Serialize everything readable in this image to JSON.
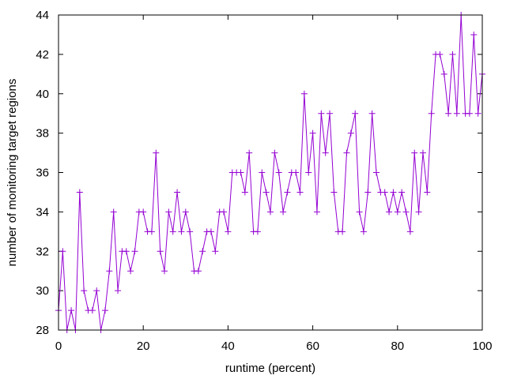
{
  "chart_data": {
    "type": "line",
    "title": "",
    "xlabel": "runtime (percent)",
    "ylabel": "number of monitoring target regions",
    "xlim": [
      0,
      100
    ],
    "ylim": [
      28,
      44
    ],
    "xticks": [
      0,
      20,
      40,
      60,
      80,
      100
    ],
    "yticks": [
      28,
      30,
      32,
      34,
      36,
      38,
      40,
      42,
      44
    ],
    "grid": false,
    "legend": "none",
    "series": [
      {
        "color": "#9400d3",
        "marker": "plus",
        "x": [
          0,
          1,
          2,
          3,
          4,
          5,
          6,
          7,
          8,
          9,
          10,
          11,
          12,
          13,
          14,
          15,
          16,
          17,
          18,
          19,
          20,
          21,
          22,
          23,
          24,
          25,
          26,
          27,
          28,
          29,
          30,
          31,
          32,
          33,
          34,
          35,
          36,
          37,
          38,
          39,
          40,
          41,
          42,
          43,
          44,
          45,
          46,
          47,
          48,
          49,
          50,
          51,
          52,
          53,
          54,
          55,
          56,
          57,
          58,
          59,
          60,
          61,
          62,
          63,
          64,
          65,
          66,
          67,
          68,
          69,
          70,
          71,
          72,
          73,
          74,
          75,
          76,
          77,
          78,
          79,
          80,
          81,
          82,
          83,
          84,
          85,
          86,
          87,
          88,
          89,
          90,
          91,
          92,
          93,
          94,
          95,
          96,
          97,
          98,
          99,
          100
        ],
        "y": [
          29,
          32,
          28,
          29,
          28,
          35,
          30,
          29,
          29,
          30,
          28,
          29,
          31,
          34,
          30,
          32,
          32,
          31,
          32,
          34,
          34,
          33,
          33,
          37,
          32,
          31,
          34,
          33,
          35,
          33,
          34,
          33,
          31,
          31,
          32,
          33,
          33,
          32,
          34,
          34,
          33,
          36,
          36,
          36,
          35,
          37,
          33,
          33,
          36,
          35,
          34,
          37,
          36,
          34,
          35,
          36,
          36,
          35,
          40,
          36,
          38,
          34,
          39,
          37,
          39,
          35,
          33,
          33,
          37,
          38,
          39,
          34,
          33,
          35,
          39,
          36,
          35,
          35,
          34,
          35,
          34,
          35,
          34,
          33,
          37,
          34,
          37,
          35,
          39,
          42,
          42,
          41,
          39,
          42,
          39,
          44,
          39,
          39,
          43,
          39,
          41
        ]
      }
    ]
  }
}
